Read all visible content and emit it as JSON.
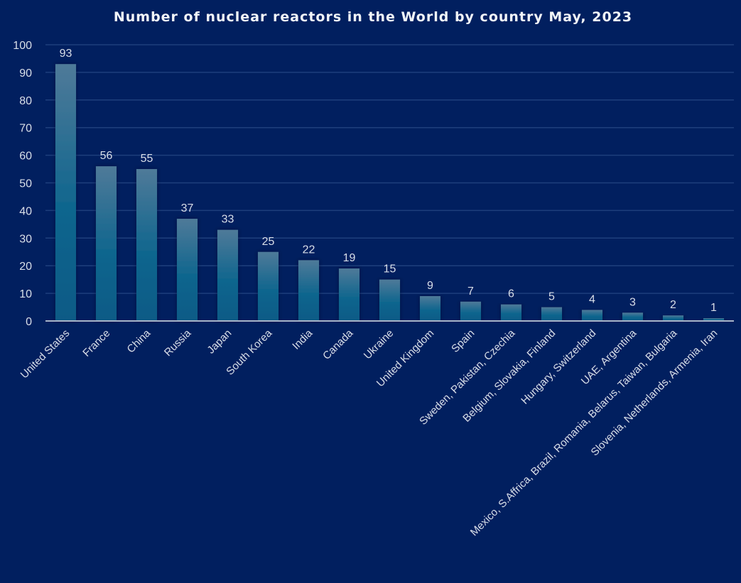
{
  "chart_data": {
    "type": "bar",
    "title": "Number of nuclear reactors in the World by country May, 2023",
    "xlabel": "",
    "ylabel": "",
    "ylim": [
      0,
      100
    ],
    "yticks": [
      0,
      10,
      20,
      30,
      40,
      50,
      60,
      70,
      80,
      90,
      100
    ],
    "grid": true,
    "legend": "none",
    "categories": [
      "United States",
      "France",
      "China",
      "Russia",
      "Japan",
      "South Korea",
      "India",
      "Canada",
      "Ukraine",
      "United Kingdom",
      "Spain",
      "Sweden, Pakistan, Czechia",
      "Belgium, Slovakia, Finland",
      "Hungary, Switzerland",
      "UAE, Argentina",
      "Mexico, S.Affrica, Brazil, Romania, Belarus, Taiwan, Bulgaria",
      "Slovenia, Netherlands, Armenia, Iran"
    ],
    "values": [
      93,
      56,
      55,
      37,
      33,
      25,
      22,
      19,
      15,
      9,
      7,
      6,
      5,
      4,
      3,
      2,
      1
    ],
    "colors": {
      "background": "#011f5f",
      "bar_top": "#4f7a99",
      "bar_bottom": "#0b5a86",
      "text": "#d9dee8"
    }
  }
}
